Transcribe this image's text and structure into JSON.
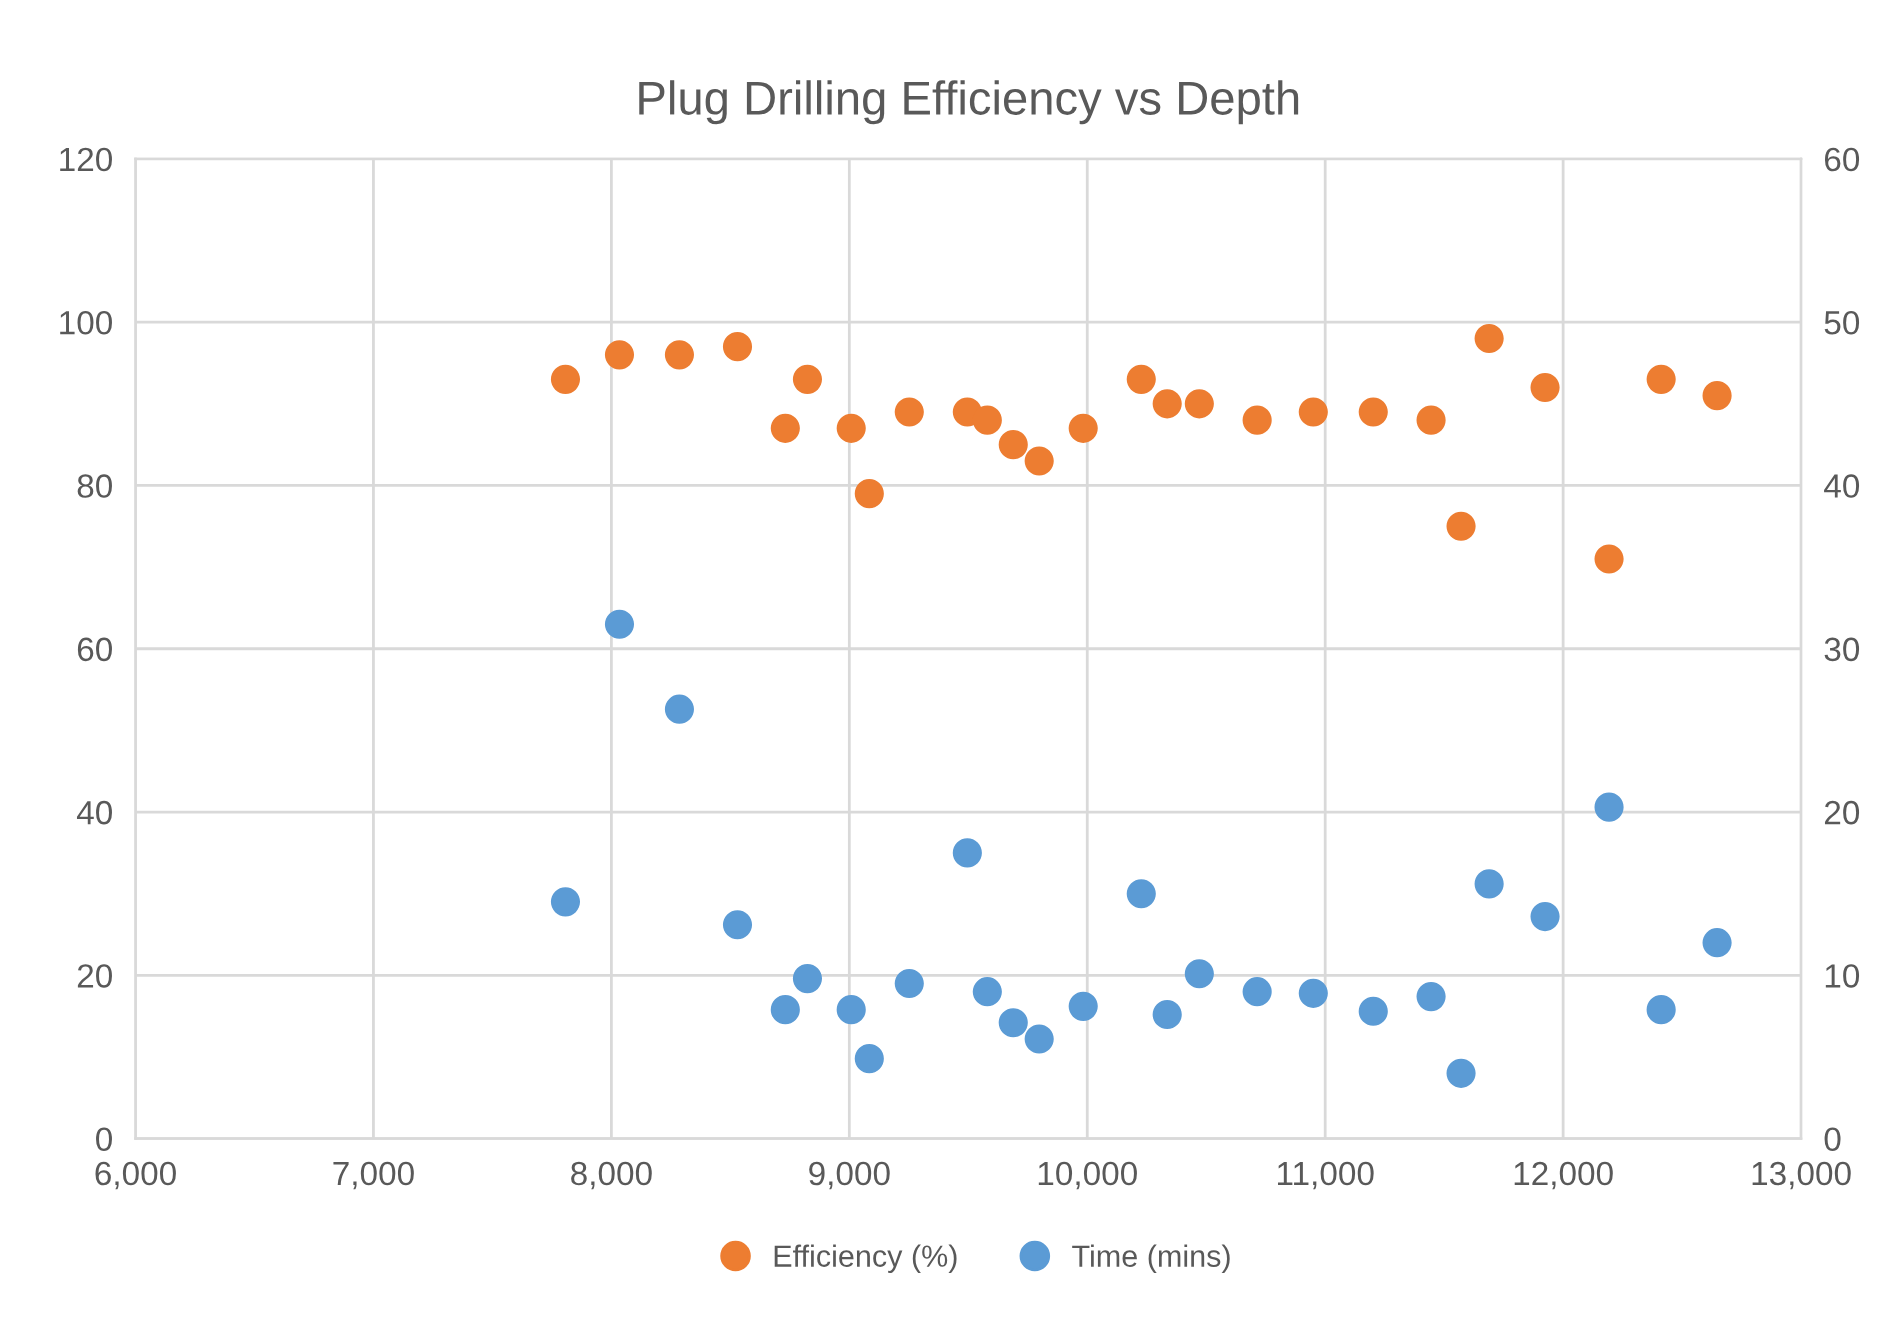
{
  "chart_data": {
    "type": "scatter",
    "title": "Plug Drilling Efficiency vs Depth",
    "x": [
      7807,
      8034,
      8286,
      8530,
      8731,
      8824,
      9008,
      9084,
      9252,
      9496,
      9580,
      9689,
      9798,
      9983,
      10227,
      10336,
      10471,
      10714,
      10950,
      11202,
      11445,
      11571,
      11689,
      11924,
      12193,
      12412,
      12647
    ],
    "series": [
      {
        "name": "Efficiency (%)",
        "color": "#ed7d31",
        "values": [
          93,
          96,
          96,
          97,
          87,
          93,
          87,
          79,
          89,
          89,
          88,
          85,
          83,
          87,
          93,
          90,
          90,
          88,
          89,
          89,
          88,
          75,
          98,
          92,
          71,
          93,
          91
        ]
      },
      {
        "name": "Time (mins)",
        "color": "#5b9bd5",
        "axis": "y2",
        "values": [
          14.5,
          31.5,
          26.3,
          13.1,
          7.9,
          9.8,
          7.9,
          4.9,
          9.5,
          17.5,
          9.0,
          7.1,
          6.1,
          8.1,
          15.0,
          7.6,
          10.1,
          9.0,
          8.9,
          7.8,
          8.7,
          4.0,
          15.6,
          13.6,
          20.3,
          7.9,
          12.0
        ]
      }
    ],
    "xlim": [
      6000,
      13000
    ],
    "xticks": [
      {
        "value": 6000,
        "label": "6,000"
      },
      {
        "value": 7000,
        "label": "7,000"
      },
      {
        "value": 8000,
        "label": "8,000"
      },
      {
        "value": 9000,
        "label": "9,000"
      },
      {
        "value": 10000,
        "label": "10,000"
      },
      {
        "value": 11000,
        "label": "11,000"
      },
      {
        "value": 12000,
        "label": "12,000"
      },
      {
        "value": 13000,
        "label": "13,000"
      }
    ],
    "ylim": [
      0,
      120
    ],
    "yticks": [
      0,
      20,
      40,
      60,
      80,
      100,
      120
    ],
    "y2lim": [
      0,
      60
    ],
    "y2ticks": [
      0,
      10,
      20,
      30,
      40,
      50,
      60
    ],
    "grid": true,
    "legend": "bottom",
    "marker": "circle"
  }
}
